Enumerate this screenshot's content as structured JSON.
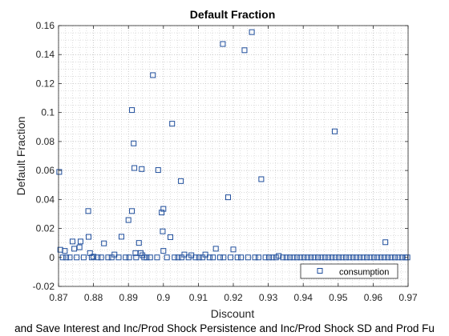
{
  "chart_data": {
    "type": "scatter",
    "title": "Default Fraction",
    "xlabel": "Discount",
    "ylabel": "Default Fraction",
    "caption": "and Save Interest and Inc/Prod Shock Persistence and Inc/Prod Shock SD and Prod Fu",
    "xlim": [
      0.87,
      0.97
    ],
    "ylim": [
      -0.02,
      0.16
    ],
    "xticks": [
      "0.87",
      "0.88",
      "0.89",
      "0.9",
      "0.91",
      "0.92",
      "0.93",
      "0.94",
      "0.95",
      "0.96",
      "0.97"
    ],
    "yticks": [
      "-0.02",
      "0",
      "0.02",
      "0.04",
      "0.06",
      "0.08",
      "0.1",
      "0.12",
      "0.14",
      "0.16"
    ],
    "grid": true,
    "minor_grid": true,
    "legend_position": "bottom-right",
    "marker_color": "#1f4e9c",
    "series": [
      {
        "name": "consumption",
        "points": [
          [
            0.8702,
            0.059
          ],
          [
            0.8705,
            0.0053
          ],
          [
            0.8718,
            0.0045
          ],
          [
            0.874,
            0.011
          ],
          [
            0.8745,
            0.006
          ],
          [
            0.876,
            0.007
          ],
          [
            0.8763,
            0.011
          ],
          [
            0.8785,
            0.032
          ],
          [
            0.8786,
            0.0142
          ],
          [
            0.879,
            0.003
          ],
          [
            0.88,
            0.0005
          ],
          [
            0.883,
            0.0097
          ],
          [
            0.886,
            0.002
          ],
          [
            0.888,
            0.0143
          ],
          [
            0.89,
            0.0258
          ],
          [
            0.891,
            0.1017
          ],
          [
            0.891,
            0.032
          ],
          [
            0.8915,
            0.0787
          ],
          [
            0.8917,
            0.0617
          ],
          [
            0.892,
            0.003
          ],
          [
            0.893,
            0.01
          ],
          [
            0.8935,
            0.003
          ],
          [
            0.8938,
            0.061
          ],
          [
            0.894,
            0.0015
          ],
          [
            0.897,
            0.1258
          ],
          [
            0.8985,
            0.0603
          ],
          [
            0.8995,
            0.031
          ],
          [
            0.9,
            0.0335
          ],
          [
            0.8998,
            0.018
          ],
          [
            0.9,
            0.0045
          ],
          [
            0.902,
            0.014
          ],
          [
            0.9025,
            0.0923
          ],
          [
            0.905,
            0.0527
          ],
          [
            0.906,
            0.002
          ],
          [
            0.908,
            0.0015
          ],
          [
            0.912,
            0.002
          ],
          [
            0.915,
            0.006
          ],
          [
            0.917,
            0.1473
          ],
          [
            0.9185,
            0.0415
          ],
          [
            0.92,
            0.0055
          ],
          [
            0.9232,
            0.143
          ],
          [
            0.9253,
            0.1555
          ],
          [
            0.928,
            0.054
          ],
          [
            0.933,
            0.001
          ],
          [
            0.949,
            0.087
          ],
          [
            0.9635,
            0.0105
          ],
          [
            0.8712,
            0
          ],
          [
            0.8722,
            0
          ],
          [
            0.8732,
            0
          ],
          [
            0.8752,
            0
          ],
          [
            0.8772,
            0
          ],
          [
            0.8795,
            0
          ],
          [
            0.8812,
            0
          ],
          [
            0.8822,
            0
          ],
          [
            0.8842,
            0
          ],
          [
            0.8852,
            0
          ],
          [
            0.8872,
            0
          ],
          [
            0.8892,
            0
          ],
          [
            0.8902,
            0
          ],
          [
            0.8922,
            0
          ],
          [
            0.8945,
            0
          ],
          [
            0.8952,
            0
          ],
          [
            0.8962,
            0
          ],
          [
            0.8982,
            0
          ],
          [
            0.901,
            0
          ],
          [
            0.9032,
            0
          ],
          [
            0.9042,
            0
          ],
          [
            0.9052,
            0
          ],
          [
            0.9072,
            0
          ],
          [
            0.9092,
            0
          ],
          [
            0.9102,
            0
          ],
          [
            0.9112,
            0
          ],
          [
            0.9132,
            0
          ],
          [
            0.9142,
            0
          ],
          [
            0.9162,
            0
          ],
          [
            0.9172,
            0
          ],
          [
            0.9192,
            0
          ],
          [
            0.9212,
            0
          ],
          [
            0.9222,
            0
          ],
          [
            0.9242,
            0
          ],
          [
            0.9262,
            0
          ],
          [
            0.9272,
            0
          ],
          [
            0.9292,
            0
          ],
          [
            0.9302,
            0
          ],
          [
            0.9312,
            0
          ],
          [
            0.9322,
            0
          ],
          [
            0.9342,
            0
          ],
          [
            0.9352,
            0
          ],
          [
            0.9362,
            0
          ],
          [
            0.9372,
            0
          ],
          [
            0.9382,
            0
          ],
          [
            0.9392,
            0
          ],
          [
            0.9402,
            0
          ],
          [
            0.9412,
            0
          ],
          [
            0.9422,
            0
          ],
          [
            0.9432,
            0
          ],
          [
            0.9442,
            0
          ],
          [
            0.9452,
            0
          ],
          [
            0.9462,
            0
          ],
          [
            0.9472,
            0
          ],
          [
            0.9482,
            0
          ],
          [
            0.9492,
            0
          ],
          [
            0.9502,
            0
          ],
          [
            0.9512,
            0
          ],
          [
            0.9522,
            0
          ],
          [
            0.9532,
            0
          ],
          [
            0.9542,
            0
          ],
          [
            0.9552,
            0
          ],
          [
            0.9562,
            0
          ],
          [
            0.9572,
            0
          ],
          [
            0.9582,
            0
          ],
          [
            0.9592,
            0
          ],
          [
            0.9602,
            0
          ],
          [
            0.9612,
            0
          ],
          [
            0.9622,
            0
          ],
          [
            0.9632,
            0
          ],
          [
            0.9642,
            0
          ],
          [
            0.9652,
            0
          ],
          [
            0.9662,
            0
          ],
          [
            0.9672,
            0
          ],
          [
            0.9682,
            0
          ],
          [
            0.9692,
            0
          ],
          [
            0.9698,
            0
          ]
        ]
      }
    ]
  }
}
